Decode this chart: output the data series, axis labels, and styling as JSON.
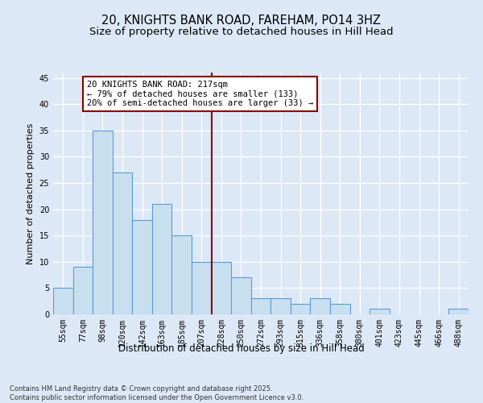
{
  "title": "20, KNIGHTS BANK ROAD, FAREHAM, PO14 3HZ",
  "subtitle": "Size of property relative to detached houses in Hill Head",
  "xlabel": "Distribution of detached houses by size in Hill Head",
  "ylabel": "Number of detached properties",
  "categories": [
    "55sqm",
    "77sqm",
    "98sqm",
    "120sqm",
    "142sqm",
    "163sqm",
    "185sqm",
    "207sqm",
    "228sqm",
    "250sqm",
    "272sqm",
    "293sqm",
    "315sqm",
    "336sqm",
    "358sqm",
    "380sqm",
    "401sqm",
    "423sqm",
    "445sqm",
    "466sqm",
    "488sqm"
  ],
  "values": [
    5,
    9,
    35,
    27,
    18,
    21,
    15,
    10,
    10,
    7,
    3,
    3,
    2,
    3,
    2,
    0,
    1,
    0,
    0,
    0,
    1
  ],
  "bar_color": "#c8dff0",
  "bar_edge_color": "#5b9bd5",
  "background_color": "#dce8f5",
  "grid_color": "#ffffff",
  "vline_color": "#8b0000",
  "vline_index": 7,
  "annotation_text": "20 KNIGHTS BANK ROAD: 217sqm\n← 79% of detached houses are smaller (133)\n20% of semi-detached houses are larger (33) →",
  "annotation_box_color": "#ffffff",
  "annotation_edge_color": "#8b0000",
  "ylim": [
    0,
    46
  ],
  "yticks": [
    0,
    5,
    10,
    15,
    20,
    25,
    30,
    35,
    40,
    45
  ],
  "footnote": "Contains HM Land Registry data © Crown copyright and database right 2025.\nContains public sector information licensed under the Open Government Licence v3.0.",
  "title_fontsize": 10.5,
  "subtitle_fontsize": 9.5,
  "xlabel_fontsize": 8.5,
  "ylabel_fontsize": 8,
  "tick_fontsize": 7,
  "annotation_fontsize": 7.5,
  "footnote_fontsize": 6
}
